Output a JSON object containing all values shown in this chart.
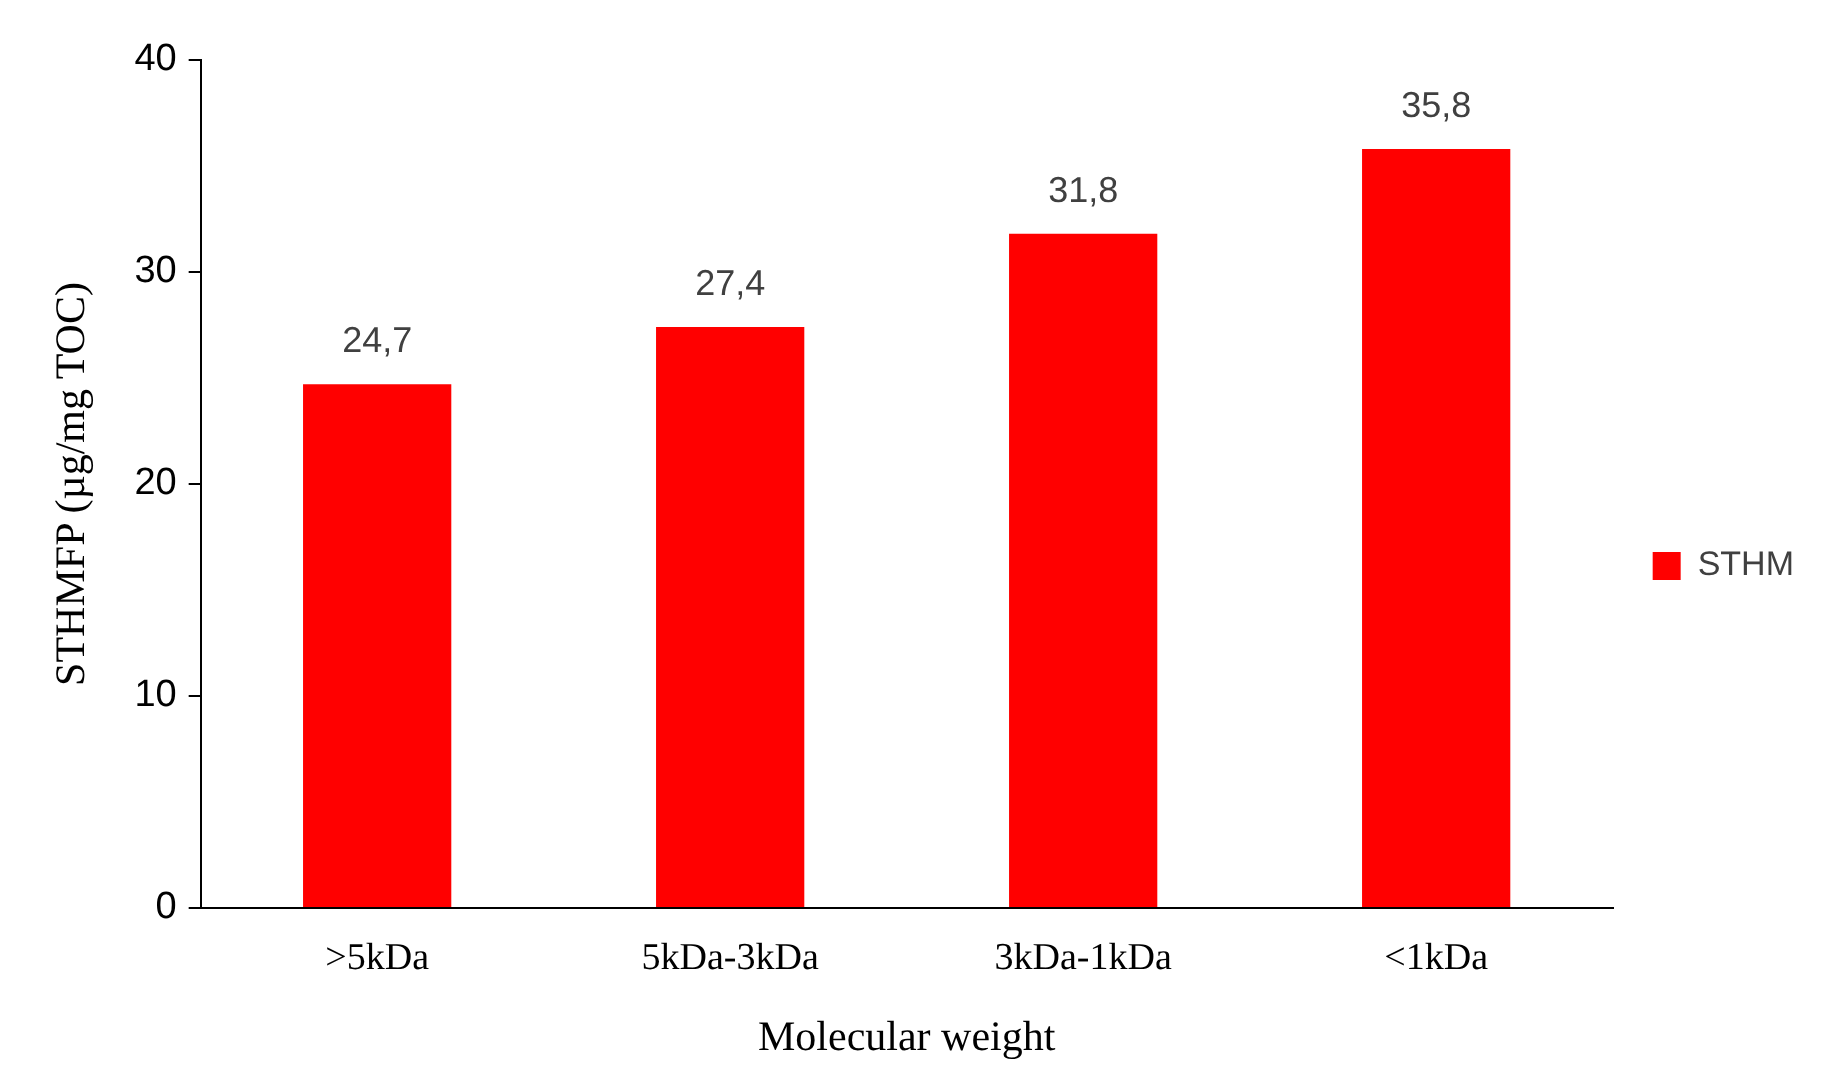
{
  "chart_data": {
    "type": "bar",
    "xlabel": "Molecular weight",
    "ylabel": "STHMFP (µg/mg TOC)",
    "categories": [
      ">5kDa",
      "5kDa-3kDa",
      "3kDa-1kDa",
      "<1kDa"
    ],
    "series": [
      {
        "name": "STHM",
        "color": "#ff0000",
        "values": [
          24.7,
          27.4,
          31.8,
          35.8
        ],
        "value_labels": [
          "24,7",
          "27,4",
          "31,8",
          "35,8"
        ]
      }
    ],
    "ylim": [
      0,
      40
    ],
    "yticks": [
      0,
      10,
      20,
      30,
      40
    ],
    "grid": false,
    "legend": "right"
  }
}
